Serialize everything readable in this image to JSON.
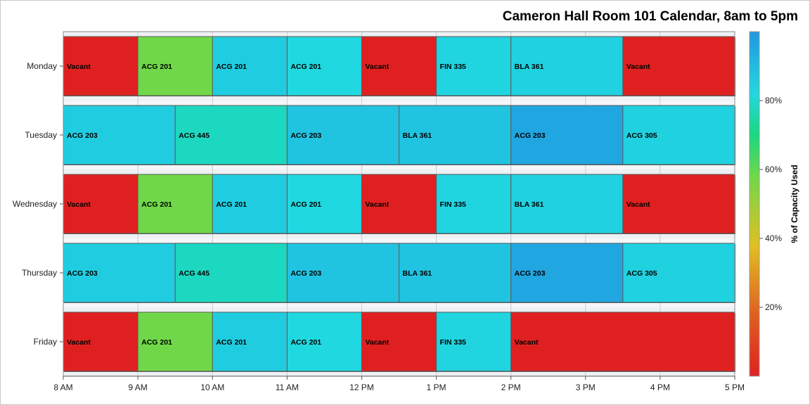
{
  "chart_data": {
    "type": "heatmap",
    "title": "Cameron Hall Room 101 Calendar, 8am to 5pm",
    "xlabel": "",
    "ylabel": "",
    "x_ticks": [
      "8 AM",
      "9 AM",
      "10 AM",
      "11 AM",
      "12 PM",
      "1 PM",
      "2 PM",
      "3 PM",
      "4 PM",
      "5 PM"
    ],
    "xlim": [
      8,
      17
    ],
    "days": [
      "Monday",
      "Tuesday",
      "Wednesday",
      "Thursday",
      "Friday"
    ],
    "colorbar": {
      "label": "% of Capacity Used",
      "ticks": [
        "20%",
        "40%",
        "60%",
        "80%"
      ],
      "tick_values": [
        20,
        40,
        60,
        80
      ],
      "range": [
        0,
        100
      ],
      "colors": [
        "#e02020",
        "#e87020",
        "#e0d020",
        "#70d848",
        "#18d880",
        "#20d8e0",
        "#2098e0"
      ]
    },
    "schedule": {
      "Monday": [
        {
          "start": 8,
          "end": 9,
          "label": "Vacant",
          "usage": 0
        },
        {
          "start": 9,
          "end": 10,
          "label": "ACG 201",
          "usage": 58
        },
        {
          "start": 10,
          "end": 11,
          "label": "ACG 201",
          "usage": 85
        },
        {
          "start": 11,
          "end": 12,
          "label": "ACG 201",
          "usage": 82
        },
        {
          "start": 12,
          "end": 13,
          "label": "Vacant",
          "usage": 0
        },
        {
          "start": 13,
          "end": 14,
          "label": "FIN 335",
          "usage": 83
        },
        {
          "start": 14,
          "end": 15.5,
          "label": "BLA 361",
          "usage": 84
        },
        {
          "start": 15.5,
          "end": 17,
          "label": "Vacant",
          "usage": 0
        }
      ],
      "Tuesday": [
        {
          "start": 8,
          "end": 9.5,
          "label": "ACG 203",
          "usage": 85
        },
        {
          "start": 9.5,
          "end": 11,
          "label": "ACG 445",
          "usage": 78
        },
        {
          "start": 11,
          "end": 12.5,
          "label": "ACG 203",
          "usage": 88
        },
        {
          "start": 12.5,
          "end": 14,
          "label": "BLA 361",
          "usage": 88
        },
        {
          "start": 14,
          "end": 15.5,
          "label": "ACG 203",
          "usage": 96
        },
        {
          "start": 15.5,
          "end": 17,
          "label": "ACG 305",
          "usage": 84
        }
      ],
      "Wednesday": [
        {
          "start": 8,
          "end": 9,
          "label": "Vacant",
          "usage": 0
        },
        {
          "start": 9,
          "end": 10,
          "label": "ACG 201",
          "usage": 58
        },
        {
          "start": 10,
          "end": 11,
          "label": "ACG 201",
          "usage": 85
        },
        {
          "start": 11,
          "end": 12,
          "label": "ACG 201",
          "usage": 82
        },
        {
          "start": 12,
          "end": 13,
          "label": "Vacant",
          "usage": 0
        },
        {
          "start": 13,
          "end": 14,
          "label": "FIN 335",
          "usage": 83
        },
        {
          "start": 14,
          "end": 15.5,
          "label": "BLA 361",
          "usage": 84
        },
        {
          "start": 15.5,
          "end": 17,
          "label": "Vacant",
          "usage": 0
        }
      ],
      "Thursday": [
        {
          "start": 8,
          "end": 9.5,
          "label": "ACG 203",
          "usage": 85
        },
        {
          "start": 9.5,
          "end": 11,
          "label": "ACG 445",
          "usage": 78
        },
        {
          "start": 11,
          "end": 12.5,
          "label": "ACG 203",
          "usage": 88
        },
        {
          "start": 12.5,
          "end": 14,
          "label": "BLA 361",
          "usage": 88
        },
        {
          "start": 14,
          "end": 15.5,
          "label": "ACG 203",
          "usage": 96
        },
        {
          "start": 15.5,
          "end": 17,
          "label": "ACG 305",
          "usage": 84
        }
      ],
      "Friday": [
        {
          "start": 8,
          "end": 9,
          "label": "Vacant",
          "usage": 0
        },
        {
          "start": 9,
          "end": 10,
          "label": "ACG 201",
          "usage": 58
        },
        {
          "start": 10,
          "end": 11,
          "label": "ACG 201",
          "usage": 85
        },
        {
          "start": 11,
          "end": 12,
          "label": "ACG 201",
          "usage": 82
        },
        {
          "start": 12,
          "end": 13,
          "label": "Vacant",
          "usage": 0
        },
        {
          "start": 13,
          "end": 14,
          "label": "FIN 335",
          "usage": 83
        },
        {
          "start": 14,
          "end": 17,
          "label": "Vacant",
          "usage": 0
        }
      ]
    }
  }
}
